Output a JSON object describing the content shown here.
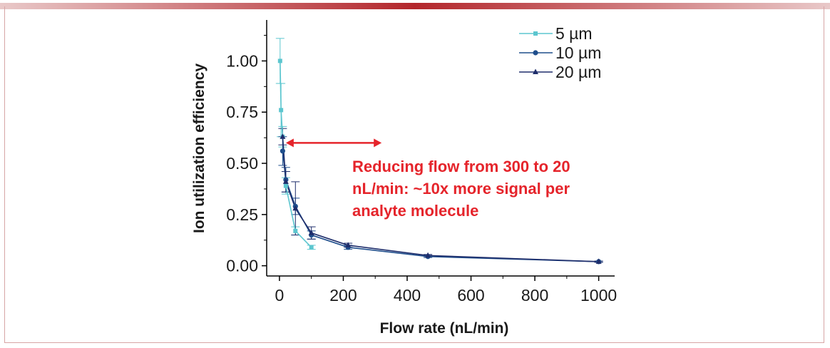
{
  "chart_data": {
    "type": "line",
    "title": "",
    "xlabel": "Flow rate (nL/min)",
    "ylabel": "Ion utilization efficiency",
    "xlim": [
      -40,
      1050
    ],
    "ylim": [
      -0.05,
      1.2
    ],
    "xticks": [
      "0",
      "200",
      "400",
      "600",
      "800",
      "1000"
    ],
    "yticks": [
      "0.00",
      "0.25",
      "0.50",
      "0.75",
      "1.00"
    ],
    "legend_position": "top-right",
    "grid": false,
    "series": [
      {
        "name": "5 µm",
        "color": "#5cc6cf",
        "marker": "square",
        "x": [
          2,
          5,
          10,
          20,
          50,
          100
        ],
        "y": [
          1.0,
          0.76,
          0.63,
          0.39,
          0.17,
          0.09
        ],
        "err": [
          0.11,
          0.13,
          0.05,
          0.04,
          0.02,
          0.01
        ]
      },
      {
        "name": "10 µm",
        "color": "#1f4e8c",
        "marker": "circle",
        "x": [
          10,
          20,
          50,
          100,
          215,
          465,
          1000
        ],
        "y": [
          0.56,
          0.42,
          0.29,
          0.15,
          0.09,
          0.045,
          0.02
        ],
        "err": [
          0.07,
          0.06,
          0.04,
          0.02,
          0.01,
          0.005,
          0.003
        ]
      },
      {
        "name": "20 µm",
        "color": "#1e2d6b",
        "marker": "triangle",
        "x": [
          10,
          20,
          50,
          100,
          215,
          465,
          1000
        ],
        "y": [
          0.63,
          0.41,
          0.28,
          0.16,
          0.1,
          0.05,
          0.02
        ],
        "err": [
          0.04,
          0.05,
          0.13,
          0.03,
          0.01,
          0.005,
          0.003
        ]
      }
    ],
    "annotation": {
      "lines": [
        "Reducing flow from 300 to 20",
        "nL/min: ~10x more signal per",
        "analyte molecule"
      ],
      "color": "#e5242b",
      "arrow_x": [
        20,
        320
      ],
      "arrow_y": 0.6
    }
  }
}
